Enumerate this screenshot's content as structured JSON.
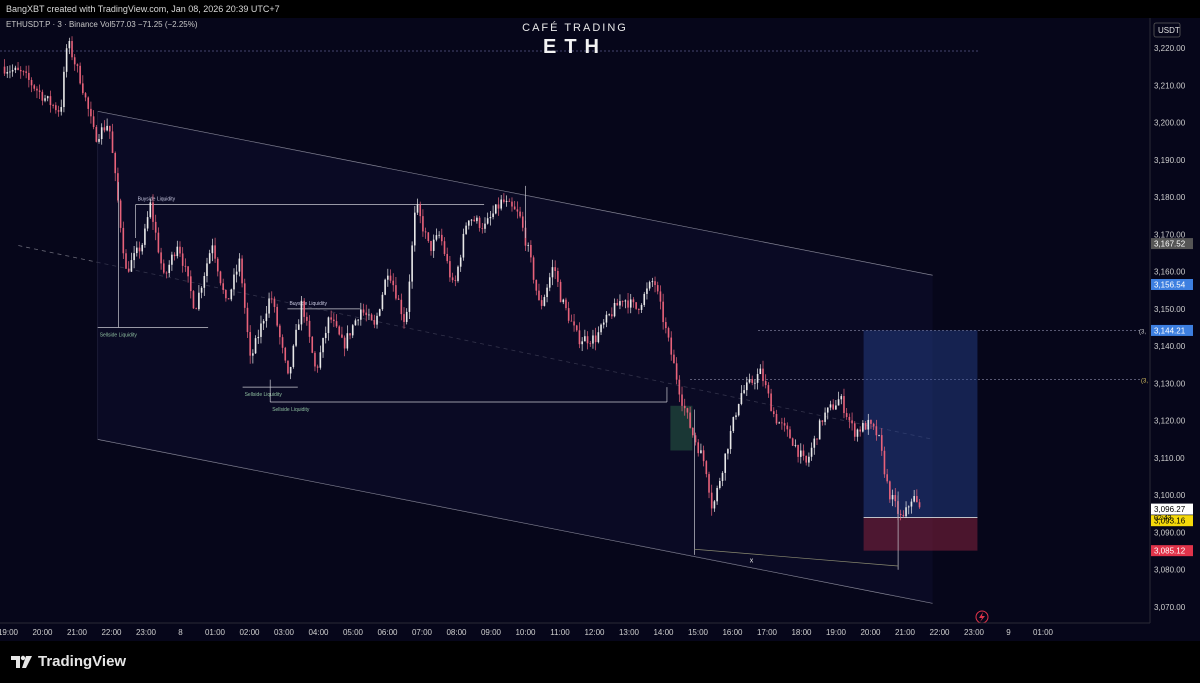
{
  "header": {
    "credit": "BangXBT created with TradingView.com, Jan 08, 2026 20:39 UTC+7",
    "symbol_line": "ETHUSDT.P · 3 · Binance  Vol577.03  −71.25 (−2.25%)"
  },
  "watermark": {
    "brand": "CAFÉ TRADING",
    "ticker": "ETH"
  },
  "footer": {
    "logo_text": "TradingView"
  },
  "colors": {
    "background": "#06061a",
    "up": "#e8e8e8",
    "down": "#e8627a",
    "accent_blue": "#3d7fe0",
    "stop_red": "#e0334a",
    "current_yellow": "#f5d90a"
  },
  "chart_data": {
    "type": "candlestick",
    "currency": "USDT",
    "y_ticks": [
      3070,
      3080,
      3090,
      3100,
      3110,
      3120,
      3130,
      3140,
      3150,
      3160,
      3170,
      3180,
      3190,
      3200,
      3210,
      3220
    ],
    "y_tick_labels": [
      "3,070.00",
      "3,080.00",
      "3,090.00",
      "3,100.00",
      "3,110.00",
      "3,120.00",
      "3,130.00",
      "3,140.00",
      "3,150.00",
      "3,160.00",
      "3,170.00",
      "3,180.00",
      "3,190.00",
      "3,200.00",
      "3,210.00",
      "3,220.00"
    ],
    "x_ticks": [
      19,
      20,
      21,
      22,
      23,
      24,
      25,
      26,
      27,
      28,
      29,
      30,
      31,
      32,
      33,
      34,
      35,
      36,
      37,
      38,
      39,
      40,
      41,
      42,
      43,
      44,
      45,
      46,
      47,
      48,
      49
    ],
    "x_tick_labels": [
      "19:00",
      "20:00",
      "21:00",
      "22:00",
      "23:00",
      "8",
      "01:00",
      "02:00",
      "03:00",
      "04:00",
      "05:00",
      "06:00",
      "07:00",
      "08:00",
      "09:00",
      "10:00",
      "11:00",
      "12:00",
      "13:00",
      "14:00",
      "15:00",
      "16:00",
      "17:00",
      "18:00",
      "19:00",
      "20:00",
      "21:00",
      "22:00",
      "23:00",
      "9",
      "01:00"
    ],
    "price_path": [
      [
        18.9,
        3215
      ],
      [
        19.5,
        3213
      ],
      [
        20.2,
        3206
      ],
      [
        20.6,
        3203
      ],
      [
        20.8,
        3222
      ],
      [
        21.2,
        3211
      ],
      [
        21.6,
        3196
      ],
      [
        22.0,
        3200
      ],
      [
        22.2,
        3184
      ],
      [
        22.5,
        3160
      ],
      [
        23.0,
        3168
      ],
      [
        23.2,
        3178
      ],
      [
        23.6,
        3158
      ],
      [
        24.0,
        3168
      ],
      [
        24.5,
        3150
      ],
      [
        25.0,
        3168
      ],
      [
        25.4,
        3151
      ],
      [
        25.8,
        3163
      ],
      [
        26.1,
        3136
      ],
      [
        26.7,
        3154
      ],
      [
        27.2,
        3131
      ],
      [
        27.6,
        3152
      ],
      [
        28.0,
        3133
      ],
      [
        28.4,
        3148
      ],
      [
        28.8,
        3140
      ],
      [
        29.3,
        3150
      ],
      [
        29.7,
        3145
      ],
      [
        30.1,
        3161
      ],
      [
        30.6,
        3146
      ],
      [
        30.9,
        3178
      ],
      [
        31.3,
        3166
      ],
      [
        31.6,
        3170
      ],
      [
        32.0,
        3155
      ],
      [
        32.4,
        3175
      ],
      [
        32.9,
        3172
      ],
      [
        33.4,
        3179
      ],
      [
        33.9,
        3175
      ],
      [
        34.2,
        3164
      ],
      [
        34.5,
        3150
      ],
      [
        34.9,
        3162
      ],
      [
        35.1,
        3153
      ],
      [
        35.6,
        3142
      ],
      [
        36.1,
        3142
      ],
      [
        36.5,
        3148
      ],
      [
        36.9,
        3153
      ],
      [
        37.3,
        3150
      ],
      [
        37.8,
        3158
      ],
      [
        38.3,
        3138
      ],
      [
        38.6,
        3126
      ],
      [
        38.9,
        3117
      ],
      [
        39.3,
        3108
      ],
      [
        39.5,
        3096
      ],
      [
        39.9,
        3112
      ],
      [
        40.3,
        3127
      ],
      [
        40.9,
        3133
      ],
      [
        41.3,
        3121
      ],
      [
        41.8,
        3115
      ],
      [
        42.2,
        3108
      ],
      [
        42.7,
        3121
      ],
      [
        43.2,
        3126
      ],
      [
        43.6,
        3117
      ],
      [
        44.0,
        3119
      ],
      [
        44.3,
        3116
      ],
      [
        44.6,
        3101
      ],
      [
        45.0,
        3093
      ],
      [
        45.3,
        3100
      ],
      [
        45.5,
        3096
      ]
    ],
    "candle_count": 340,
    "series_style": {
      "up": "#e8e8e8",
      "down": "#e8627a"
    },
    "channel": {
      "upper": [
        [
          21.6,
          3203
        ],
        [
          45.8,
          3159
        ]
      ],
      "lower": [
        [
          21.6,
          3115
        ],
        [
          45.8,
          3071
        ]
      ],
      "middle": [
        [
          21.6,
          3159
        ],
        [
          45.8,
          3115
        ]
      ]
    },
    "liquidity_zones": [
      {
        "label": "Buyside Liquidity",
        "x": [
          22.7,
          32.8
        ],
        "y": [
          3178,
          3178
        ]
      },
      {
        "label": "Sellside Liquidity",
        "x": [
          21.6,
          24.8
        ],
        "y": [
          3145,
          3145
        ]
      },
      {
        "label": "Buyside Liquidity",
        "x": [
          27.1,
          29.2
        ],
        "y": [
          3150,
          3150
        ]
      },
      {
        "label": "Sellside Liquidity",
        "x": [
          25.8,
          27.4
        ],
        "y": [
          3129,
          3129
        ]
      },
      {
        "label": "Sellside Liquidity",
        "x": [
          26.6,
          38.1
        ],
        "y": [
          3125,
          3125
        ]
      }
    ],
    "position": {
      "entry": 3094,
      "target": 3144.21,
      "stop": 3085.12,
      "x": [
        43.8,
        47.1
      ]
    },
    "marker": {
      "label": "x",
      "x": 40.5,
      "y": 3082
    },
    "price_labels": [
      {
        "value": 3167.52,
        "text": "3,167.52",
        "color": "#555555"
      },
      {
        "value": 3156.54,
        "text": "3,156.54",
        "color": "#3d7fe0"
      },
      {
        "value": 3144.21,
        "text": "3,144.21",
        "color": "#3d7fe0"
      },
      {
        "value": 3096.27,
        "text": "3,096.27",
        "color": "#ffffff"
      },
      {
        "value": 3093.16,
        "text": "3,093.16",
        "color": "#f5d90a"
      },
      {
        "value": 3085.12,
        "text": "3,085.12",
        "color": "#e0334a"
      }
    ],
    "countdown": "02:43",
    "left_edge_labels": [
      "(3,",
      "(3,"
    ]
  }
}
